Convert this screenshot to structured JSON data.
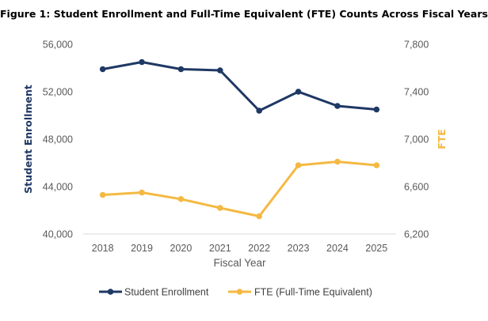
{
  "chart_data": {
    "type": "line",
    "title": "Figure 1: Student Enrollment and Full-Time Equivalent (FTE) Counts Across Fiscal Years",
    "xlabel": "Fiscal Year",
    "ylabel_left": "Student Enrollment",
    "ylabel_right": "FTE",
    "categories": [
      "2018",
      "2019",
      "2020",
      "2021",
      "2022",
      "2023",
      "2024",
      "2025"
    ],
    "y_left": {
      "min": 40000,
      "max": 56000,
      "ticks": [
        40000,
        44000,
        48000,
        52000,
        56000
      ],
      "tick_labels": [
        "40,000",
        "44,000",
        "48,000",
        "52,000",
        "56,000"
      ]
    },
    "y_right": {
      "min": 6200,
      "max": 7800,
      "ticks": [
        6200,
        6600,
        7000,
        7400,
        7800
      ],
      "tick_labels": [
        "6,200",
        "6,600",
        "7,000",
        "7,400",
        "7,800"
      ]
    },
    "grid": false,
    "legend_position": "bottom",
    "series": [
      {
        "name": "Student Enrollment",
        "axis": "left",
        "color": "#1f3864",
        "values": [
          53900,
          54500,
          53900,
          53800,
          50400,
          52000,
          50800,
          50500
        ]
      },
      {
        "name": "FTE (Full-Time Equivalent)",
        "axis": "right",
        "color": "#f4b942",
        "values": [
          6530,
          6550,
          6495,
          6420,
          6350,
          6780,
          6810,
          6780
        ]
      }
    ]
  }
}
